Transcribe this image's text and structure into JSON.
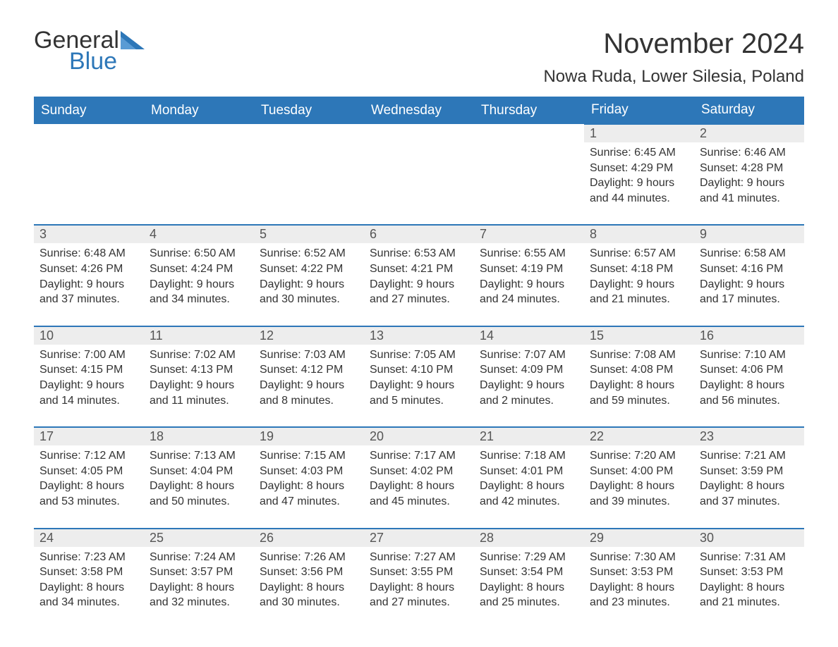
{
  "brand": {
    "word1": "General",
    "word2": "Blue"
  },
  "title": "November 2024",
  "location": "Nowa Ruda, Lower Silesia, Poland",
  "colors": {
    "header_bg": "#2d77b8",
    "header_text": "#ffffff",
    "daynum_bg": "#ededed",
    "row_border": "#2d77b8",
    "body_text": "#333333",
    "page_bg": "#ffffff",
    "logo_accent": "#2d77b8"
  },
  "typography": {
    "title_fontsize": 40,
    "location_fontsize": 24,
    "header_fontsize": 19,
    "daynum_fontsize": 18,
    "body_fontsize": 16
  },
  "dayHeaders": [
    "Sunday",
    "Monday",
    "Tuesday",
    "Wednesday",
    "Thursday",
    "Friday",
    "Saturday"
  ],
  "weeks": [
    [
      null,
      null,
      null,
      null,
      null,
      {
        "n": "1",
        "sunrise": "Sunrise: 6:45 AM",
        "sunset": "Sunset: 4:29 PM",
        "d1": "Daylight: 9 hours",
        "d2": "and 44 minutes."
      },
      {
        "n": "2",
        "sunrise": "Sunrise: 6:46 AM",
        "sunset": "Sunset: 4:28 PM",
        "d1": "Daylight: 9 hours",
        "d2": "and 41 minutes."
      }
    ],
    [
      {
        "n": "3",
        "sunrise": "Sunrise: 6:48 AM",
        "sunset": "Sunset: 4:26 PM",
        "d1": "Daylight: 9 hours",
        "d2": "and 37 minutes."
      },
      {
        "n": "4",
        "sunrise": "Sunrise: 6:50 AM",
        "sunset": "Sunset: 4:24 PM",
        "d1": "Daylight: 9 hours",
        "d2": "and 34 minutes."
      },
      {
        "n": "5",
        "sunrise": "Sunrise: 6:52 AM",
        "sunset": "Sunset: 4:22 PM",
        "d1": "Daylight: 9 hours",
        "d2": "and 30 minutes."
      },
      {
        "n": "6",
        "sunrise": "Sunrise: 6:53 AM",
        "sunset": "Sunset: 4:21 PM",
        "d1": "Daylight: 9 hours",
        "d2": "and 27 minutes."
      },
      {
        "n": "7",
        "sunrise": "Sunrise: 6:55 AM",
        "sunset": "Sunset: 4:19 PM",
        "d1": "Daylight: 9 hours",
        "d2": "and 24 minutes."
      },
      {
        "n": "8",
        "sunrise": "Sunrise: 6:57 AM",
        "sunset": "Sunset: 4:18 PM",
        "d1": "Daylight: 9 hours",
        "d2": "and 21 minutes."
      },
      {
        "n": "9",
        "sunrise": "Sunrise: 6:58 AM",
        "sunset": "Sunset: 4:16 PM",
        "d1": "Daylight: 9 hours",
        "d2": "and 17 minutes."
      }
    ],
    [
      {
        "n": "10",
        "sunrise": "Sunrise: 7:00 AM",
        "sunset": "Sunset: 4:15 PM",
        "d1": "Daylight: 9 hours",
        "d2": "and 14 minutes."
      },
      {
        "n": "11",
        "sunrise": "Sunrise: 7:02 AM",
        "sunset": "Sunset: 4:13 PM",
        "d1": "Daylight: 9 hours",
        "d2": "and 11 minutes."
      },
      {
        "n": "12",
        "sunrise": "Sunrise: 7:03 AM",
        "sunset": "Sunset: 4:12 PM",
        "d1": "Daylight: 9 hours",
        "d2": "and 8 minutes."
      },
      {
        "n": "13",
        "sunrise": "Sunrise: 7:05 AM",
        "sunset": "Sunset: 4:10 PM",
        "d1": "Daylight: 9 hours",
        "d2": "and 5 minutes."
      },
      {
        "n": "14",
        "sunrise": "Sunrise: 7:07 AM",
        "sunset": "Sunset: 4:09 PM",
        "d1": "Daylight: 9 hours",
        "d2": "and 2 minutes."
      },
      {
        "n": "15",
        "sunrise": "Sunrise: 7:08 AM",
        "sunset": "Sunset: 4:08 PM",
        "d1": "Daylight: 8 hours",
        "d2": "and 59 minutes."
      },
      {
        "n": "16",
        "sunrise": "Sunrise: 7:10 AM",
        "sunset": "Sunset: 4:06 PM",
        "d1": "Daylight: 8 hours",
        "d2": "and 56 minutes."
      }
    ],
    [
      {
        "n": "17",
        "sunrise": "Sunrise: 7:12 AM",
        "sunset": "Sunset: 4:05 PM",
        "d1": "Daylight: 8 hours",
        "d2": "and 53 minutes."
      },
      {
        "n": "18",
        "sunrise": "Sunrise: 7:13 AM",
        "sunset": "Sunset: 4:04 PM",
        "d1": "Daylight: 8 hours",
        "d2": "and 50 minutes."
      },
      {
        "n": "19",
        "sunrise": "Sunrise: 7:15 AM",
        "sunset": "Sunset: 4:03 PM",
        "d1": "Daylight: 8 hours",
        "d2": "and 47 minutes."
      },
      {
        "n": "20",
        "sunrise": "Sunrise: 7:17 AM",
        "sunset": "Sunset: 4:02 PM",
        "d1": "Daylight: 8 hours",
        "d2": "and 45 minutes."
      },
      {
        "n": "21",
        "sunrise": "Sunrise: 7:18 AM",
        "sunset": "Sunset: 4:01 PM",
        "d1": "Daylight: 8 hours",
        "d2": "and 42 minutes."
      },
      {
        "n": "22",
        "sunrise": "Sunrise: 7:20 AM",
        "sunset": "Sunset: 4:00 PM",
        "d1": "Daylight: 8 hours",
        "d2": "and 39 minutes."
      },
      {
        "n": "23",
        "sunrise": "Sunrise: 7:21 AM",
        "sunset": "Sunset: 3:59 PM",
        "d1": "Daylight: 8 hours",
        "d2": "and 37 minutes."
      }
    ],
    [
      {
        "n": "24",
        "sunrise": "Sunrise: 7:23 AM",
        "sunset": "Sunset: 3:58 PM",
        "d1": "Daylight: 8 hours",
        "d2": "and 34 minutes."
      },
      {
        "n": "25",
        "sunrise": "Sunrise: 7:24 AM",
        "sunset": "Sunset: 3:57 PM",
        "d1": "Daylight: 8 hours",
        "d2": "and 32 minutes."
      },
      {
        "n": "26",
        "sunrise": "Sunrise: 7:26 AM",
        "sunset": "Sunset: 3:56 PM",
        "d1": "Daylight: 8 hours",
        "d2": "and 30 minutes."
      },
      {
        "n": "27",
        "sunrise": "Sunrise: 7:27 AM",
        "sunset": "Sunset: 3:55 PM",
        "d1": "Daylight: 8 hours",
        "d2": "and 27 minutes."
      },
      {
        "n": "28",
        "sunrise": "Sunrise: 7:29 AM",
        "sunset": "Sunset: 3:54 PM",
        "d1": "Daylight: 8 hours",
        "d2": "and 25 minutes."
      },
      {
        "n": "29",
        "sunrise": "Sunrise: 7:30 AM",
        "sunset": "Sunset: 3:53 PM",
        "d1": "Daylight: 8 hours",
        "d2": "and 23 minutes."
      },
      {
        "n": "30",
        "sunrise": "Sunrise: 7:31 AM",
        "sunset": "Sunset: 3:53 PM",
        "d1": "Daylight: 8 hours",
        "d2": "and 21 minutes."
      }
    ]
  ]
}
